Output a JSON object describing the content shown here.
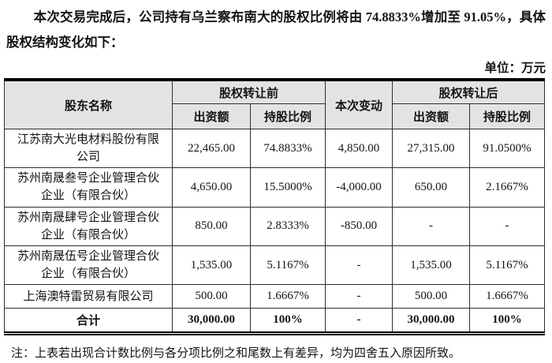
{
  "page": {
    "intro_text": "本次交易完成后，公司持有乌兰察布南大的股权比例将由 74.8833%增加至 91.05%，具体股权结构变化如下：",
    "unit_label": "单位：万元",
    "note": "注：上表若出现合计数比例与各分项比例之和尾数上有差异，均为四舍五入原因所致。"
  },
  "table": {
    "header": {
      "shareholder": "股东名称",
      "before_group": "股权转让前",
      "change": "本次变动",
      "after_group": "股权转让后",
      "sub": [
        "出资额",
        "持股比例",
        "出资额",
        "持股比例"
      ]
    },
    "rows": [
      [
        "江苏南大光电材料股份有限公司",
        "22,465.00",
        "74.8833%",
        "4,850.00",
        "27,315.00",
        "91.0500%"
      ],
      [
        "苏州南晟叁号企业管理合伙企业（有限合伙）",
        "4,650.00",
        "15.5000%",
        "-4,000.00",
        "650.00",
        "2.1667%"
      ],
      [
        "苏州南晟肆号企业管理合伙企业（有限合伙）",
        "850.00",
        "2.8333%",
        "-850.00",
        "-",
        "-"
      ],
      [
        "苏州南晟伍号企业管理合伙企业（有限合伙）",
        "1,535.00",
        "5.1167%",
        "-",
        "1,535.00",
        "5.1167%"
      ],
      [
        "上海澳特雷贸易有限公司",
        "500.00",
        "1.6667%",
        "-",
        "500.00",
        "1.6667%"
      ]
    ],
    "total_row": [
      "合计",
      "30,000.00",
      "100%",
      "-",
      "30,000.00",
      "100%"
    ]
  }
}
